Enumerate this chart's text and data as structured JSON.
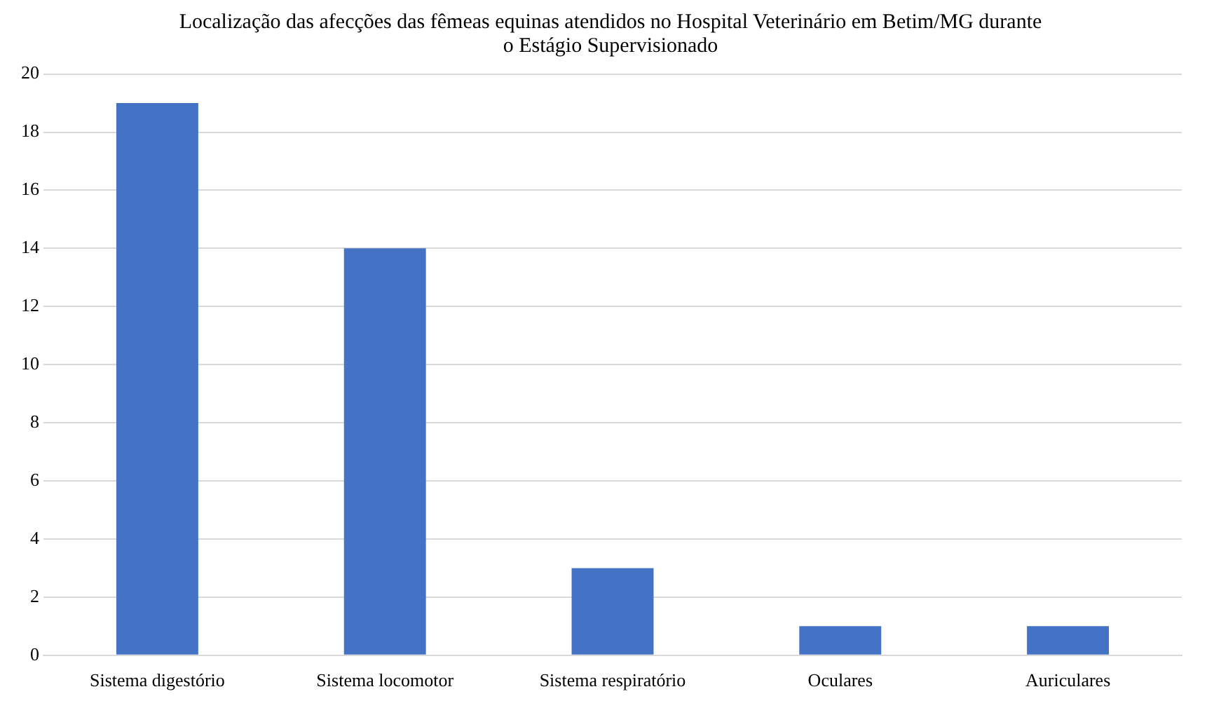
{
  "chart_data": {
    "type": "bar",
    "title": "Localização das afecções das fêmeas equinas atendidos no Hospital Veterinário em Betim/MG durante o Estágio Supervisionado",
    "categories": [
      "Sistema digestório",
      "Sistema locomotor",
      "Sistema respiratório",
      "Oculares",
      "Auriculares"
    ],
    "values": [
      19,
      14,
      3,
      1,
      1
    ],
    "color": "#4472c4",
    "ylim": [
      0,
      20
    ],
    "yticks": [
      0,
      2,
      4,
      6,
      8,
      10,
      12,
      14,
      16,
      18,
      20
    ],
    "grid": "y"
  }
}
